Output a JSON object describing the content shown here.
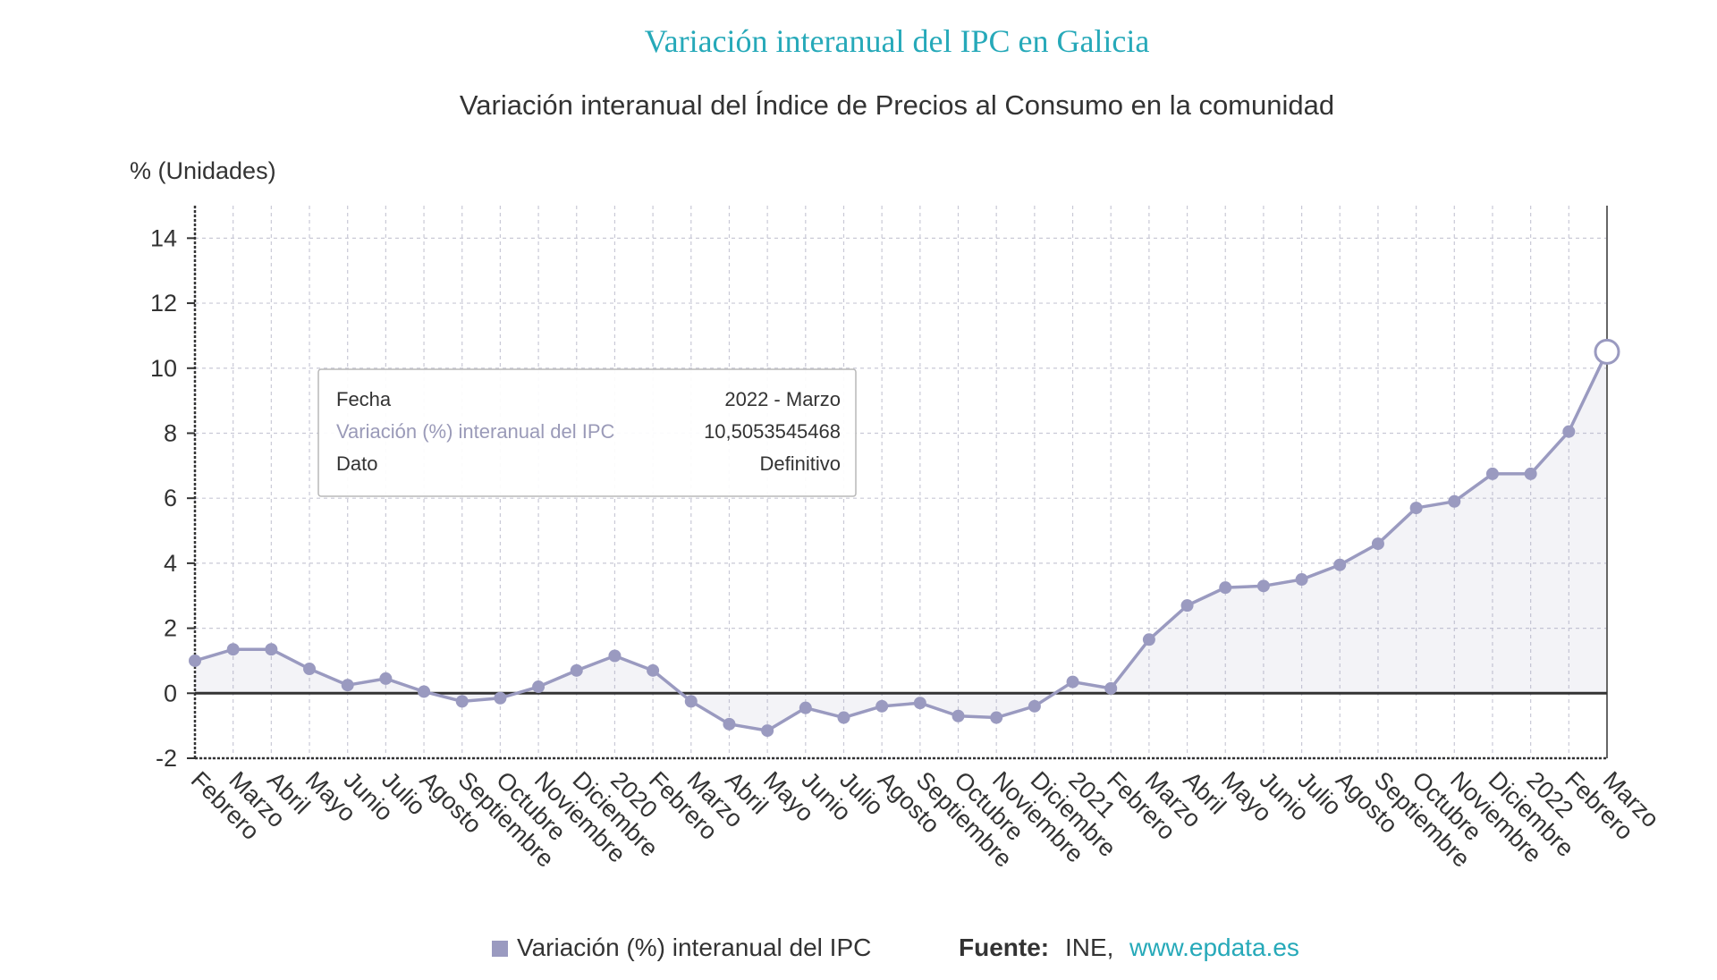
{
  "chart_data": {
    "type": "line",
    "title": "Variación interanual del IPC en Galicia",
    "subtitle": "Variación interanual del Índice de Precios al Consumo en la comunidad",
    "ylabel": "% (Unidades)",
    "ylim": [
      -2,
      15
    ],
    "yticks": [
      14,
      12,
      10,
      8,
      6,
      4,
      2,
      0,
      -2
    ],
    "grid": true,
    "categories": [
      "Febrero",
      "Marzo",
      "Abril",
      "Mayo",
      "Junio",
      "Julio",
      "Agosto",
      "Septiembre",
      "Octubre",
      "Noviembre",
      "Diciembre",
      "2020",
      "Febrero",
      "Marzo",
      "Abril",
      "Mayo",
      "Junio",
      "Julio",
      "Agosto",
      "Septiembre",
      "Octubre",
      "Noviembre",
      "Diciembre",
      "2021",
      "Febrero",
      "Marzo",
      "Abril",
      "Mayo",
      "Junio",
      "Julio",
      "Agosto",
      "Septiembre",
      "Octubre",
      "Noviembre",
      "Diciembre",
      "2022",
      "Febrero",
      "Marzo"
    ],
    "series": [
      {
        "name": "Variación (%) interanual del IPC",
        "color": "#9a9ac0",
        "values": [
          1.0,
          1.35,
          1.35,
          0.75,
          0.25,
          0.45,
          0.05,
          -0.25,
          -0.15,
          0.2,
          0.7,
          1.15,
          0.7,
          -0.25,
          -0.95,
          -1.15,
          -0.45,
          -0.75,
          -0.4,
          -0.3,
          -0.7,
          -0.75,
          -0.4,
          0.35,
          0.15,
          1.65,
          2.7,
          3.25,
          3.3,
          3.5,
          3.95,
          4.6,
          5.7,
          5.9,
          6.75,
          6.75,
          8.05,
          10.5053545468
        ]
      }
    ],
    "tooltip": {
      "rows": [
        {
          "label": "Fecha",
          "value": "2022 - Marzo"
        },
        {
          "label": "Variación (%) interanual del IPC",
          "value": "10,5053545468"
        },
        {
          "label": "Dato",
          "value": "Definitivo"
        }
      ]
    },
    "legend": {
      "label": "Variación (%) interanual del IPC",
      "placement": "bottom-center"
    },
    "source": {
      "prefix": "Fuente:",
      "org": "INE,",
      "link": "www.epdata.es"
    }
  }
}
